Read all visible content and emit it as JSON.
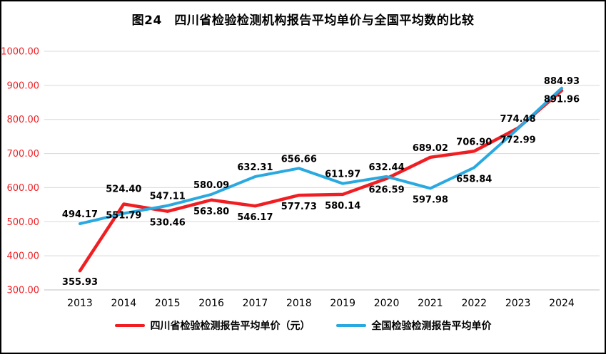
{
  "title": "图24　四川省检验检测机构报告平均单价与全国平均数的比较",
  "chart_data": {
    "type": "line",
    "title": "图24　四川省检验检测机构报告平均单价与全国平均数的比较",
    "categories": [
      "2013",
      "2014",
      "2015",
      "2016",
      "2017",
      "2018",
      "2019",
      "2020",
      "2021",
      "2022",
      "2023",
      "2024"
    ],
    "series": [
      {
        "name": "四川省检验检测报告平均单价（元）",
        "color": "#f01e23",
        "values": [
          355.93,
          551.79,
          530.46,
          563.8,
          546.17,
          577.73,
          580.14,
          626.59,
          689.02,
          706.9,
          774.48,
          884.93
        ]
      },
      {
        "name": "全国检验检测报告平均单价",
        "color": "#29a9e0",
        "values": [
          494.17,
          524.4,
          547.11,
          580.09,
          632.31,
          656.66,
          611.97,
          632.44,
          597.98,
          658.84,
          772.99,
          891.96
        ]
      }
    ],
    "ylim": [
      300,
      1000
    ],
    "y_ticks": [
      "300.00",
      "400.00",
      "500.00",
      "600.00",
      "700.00",
      "800.00",
      "900.00",
      "1000.00"
    ],
    "y_tick_color": "#f01e23",
    "x_tick_color": "#000000",
    "data_label_color": "#000000",
    "grid": true,
    "grid_color": "#d9d9d9",
    "legend_position": "bottom",
    "label_sides": [
      [
        "below",
        "below",
        "below",
        "below",
        "below",
        "below",
        "below",
        "below",
        "above",
        "above",
        "above",
        "above"
      ],
      [
        "above",
        "above2",
        "above",
        "above",
        "above",
        "above",
        "above",
        "above",
        "below",
        "below",
        "below",
        "below"
      ]
    ]
  }
}
